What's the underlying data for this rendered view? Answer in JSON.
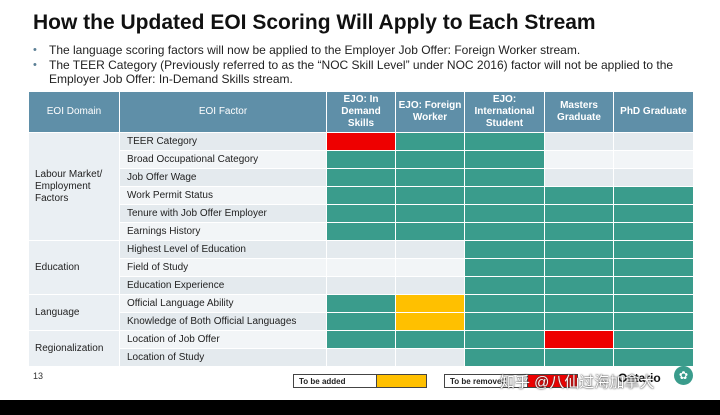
{
  "title": "How the Updated EOI Scoring Will Apply to Each Stream",
  "bullets": [
    "The language scoring factors will now be applied to the Employer Job Offer: Foreign Worker stream.",
    "The TEER Category (Previously referred to as the “NOC Skill Level” under NOC 2016) factor will not be applied to the Employer Job Offer: In-Demand Skills stream."
  ],
  "table": {
    "header": {
      "domain": "EOI Domain",
      "factor": "EOI Factor",
      "streams": [
        "EJO: In Demand Skills",
        "EJO: Foreign Worker",
        "EJO: International Student",
        "Masters Graduate",
        "PhD Graduate"
      ]
    },
    "domains": {
      "labour": "Labour Market/ Employment Factors",
      "education": "Education",
      "language": "Language",
      "regionalization": "Regionalization"
    },
    "factors": [
      "TEER Category",
      "Broad Occupational Category",
      "Job Offer Wage",
      "Work Permit Status",
      "Tenure with Job Offer Employer",
      "Earnings History",
      "Highest Level of Education",
      "Field of Study",
      "Education Experience",
      "Official Language Ability",
      "Knowledge of Both Official Languages",
      "Location of Job Offer",
      "Location of Study"
    ],
    "cell_states": [
      [
        "removed",
        "applied",
        "applied",
        "none",
        "none"
      ],
      [
        "applied",
        "applied",
        "applied",
        "none",
        "none"
      ],
      [
        "applied",
        "applied",
        "applied",
        "none",
        "none"
      ],
      [
        "applied",
        "applied",
        "applied",
        "applied",
        "applied"
      ],
      [
        "applied",
        "applied",
        "applied",
        "applied",
        "applied"
      ],
      [
        "applied",
        "applied",
        "applied",
        "applied",
        "applied"
      ],
      [
        "none",
        "none",
        "applied",
        "applied",
        "applied"
      ],
      [
        "none",
        "none",
        "applied",
        "applied",
        "applied"
      ],
      [
        "none",
        "none",
        "applied",
        "applied",
        "applied"
      ],
      [
        "applied",
        "added",
        "applied",
        "applied",
        "applied"
      ],
      [
        "applied",
        "added",
        "applied",
        "applied",
        "applied"
      ],
      [
        "applied",
        "applied",
        "applied",
        "removed",
        "applied"
      ],
      [
        "none",
        "none",
        "applied",
        "applied",
        "applied"
      ]
    ]
  },
  "colors": {
    "header": "#5f8fa8",
    "applied": "#3a9c8c",
    "removed": "#ee0000",
    "added": "#ffc000"
  },
  "footer": {
    "page_number": "13",
    "legend_added": "To be added",
    "legend_removed": "To be removed",
    "logo_text": "Ontario",
    "watermark": "知乎 @八仙过海加拿大"
  }
}
